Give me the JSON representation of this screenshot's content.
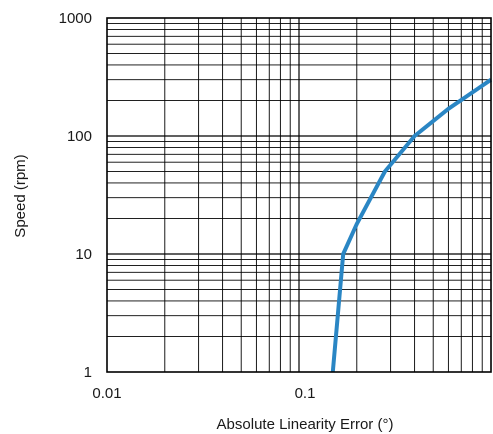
{
  "chart_data": {
    "type": "line",
    "title": "",
    "xlabel": "Absolute Linearity Error (°)",
    "ylabel": "Speed (rpm)",
    "xscale": "log",
    "yscale": "log",
    "xlim": [
      0.01,
      1
    ],
    "ylim": [
      1,
      1000
    ],
    "grid": true,
    "x_tick_labels": [
      "0.01",
      "0.1"
    ],
    "y_tick_labels": [
      "1",
      "10",
      "100",
      "1000"
    ],
    "series": [
      {
        "color": "#2a86c4",
        "x": [
          0.15,
          0.17,
          0.2,
          0.28,
          0.4,
          0.6,
          0.88,
          1.0
        ],
        "y": [
          1,
          10,
          18,
          50,
          100,
          170,
          260,
          300
        ]
      }
    ]
  }
}
